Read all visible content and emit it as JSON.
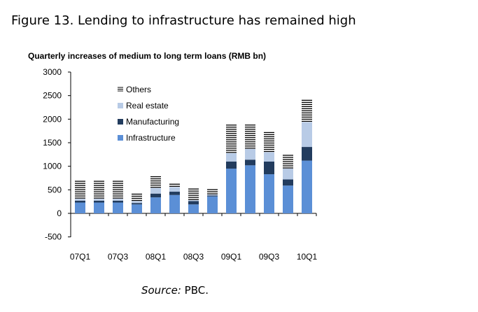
{
  "figure_title": "Figure 13. Lending to infrastructure has remained high",
  "source": {
    "label": "Source:",
    "text": "PBC."
  },
  "colors": {
    "Infrastructure": "#5b8fd6",
    "Manufacturing": "#223c5e",
    "Real estate": "#b8cbe6",
    "Others": "#000000"
  },
  "legend_labels": [
    "Others",
    "Real estate",
    "Manufacturing",
    "Infrastructure"
  ],
  "chart_data": {
    "type": "bar",
    "stacked": true,
    "title": "Quarterly increases of medium to long term loans (RMB bn)",
    "categories": [
      "07Q1",
      "07Q2",
      "07Q3",
      "07Q4",
      "08Q1",
      "08Q2",
      "08Q3",
      "08Q4",
      "09Q1",
      "09Q2",
      "09Q3",
      "09Q4",
      "10Q1"
    ],
    "tick_labels": [
      "07Q1",
      "",
      "07Q3",
      "",
      "08Q1",
      "",
      "08Q3",
      "",
      "09Q1",
      "",
      "09Q3",
      "",
      "10Q1"
    ],
    "ylim": [
      -500,
      3000
    ],
    "yticks": [
      -500,
      0,
      500,
      1000,
      1500,
      2000,
      2500,
      3000
    ],
    "legend_position": "top-left",
    "grid": false,
    "series": [
      {
        "name": "Infrastructure",
        "values": [
          230,
          230,
          230,
          190,
          340,
          390,
          190,
          360,
          950,
          1020,
          830,
          590,
          1120
        ]
      },
      {
        "name": "Manufacturing",
        "values": [
          40,
          40,
          40,
          30,
          80,
          70,
          70,
          20,
          150,
          120,
          270,
          130,
          290
        ]
      },
      {
        "name": "Real estate",
        "values": [
          40,
          40,
          40,
          40,
          120,
          100,
          20,
          20,
          180,
          230,
          200,
          230,
          530
        ]
      },
      {
        "name": "Others",
        "values": [
          380,
          380,
          380,
          170,
          260,
          90,
          270,
          140,
          610,
          530,
          430,
          300,
          510
        ]
      }
    ]
  }
}
